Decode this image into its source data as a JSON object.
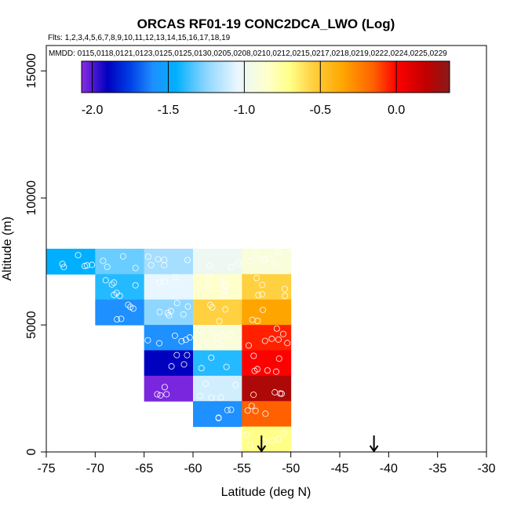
{
  "chart_data": {
    "type": "heatmap",
    "title": "ORCAS RF01-19 CONC2DCA_LWO (Log)",
    "flights_text": "Flts: 1,2,3,4,5,6,7,8,9,10,11,12,13,14,15,16,17,18,19",
    "mmdd_text": "MMDD: 0115,0118,0121,0123,0125,0125,0130,0205,0208,0210,0212,0215,0217,0218,0219,0222,0224,0225,0229",
    "xlabel": "Latitude (deg N)",
    "ylabel": "Altitude (m)",
    "xlim": [
      -75,
      -30
    ],
    "ylim": [
      0,
      16000
    ],
    "xticks": [
      -75,
      -70,
      -65,
      -60,
      -55,
      -50,
      -45,
      -40,
      -35,
      -30
    ],
    "yticks": [
      0,
      5000,
      10000,
      15000
    ],
    "colorbar": {
      "range": [
        -2.07,
        0.35
      ],
      "ticks": [
        -2.0,
        -1.5,
        -1.0,
        -0.5,
        0.0
      ],
      "tick_labels": [
        "-2.0",
        "-1.5",
        "-1.0",
        "-0.5",
        "0.0"
      ],
      "stops": [
        {
          "v": -2.07,
          "c": "#8a2be2"
        },
        {
          "v": -1.9,
          "c": "#0000bf"
        },
        {
          "v": -1.75,
          "c": "#0040e6"
        },
        {
          "v": -1.6,
          "c": "#1e90ff"
        },
        {
          "v": -1.45,
          "c": "#00b0ff"
        },
        {
          "v": -1.25,
          "c": "#8ed6ff"
        },
        {
          "v": -1.05,
          "c": "#e8f6ff"
        },
        {
          "v": -0.85,
          "c": "#ffffcc"
        },
        {
          "v": -0.7,
          "c": "#ffff88"
        },
        {
          "v": -0.55,
          "c": "#ffd040"
        },
        {
          "v": -0.35,
          "c": "#ffa500"
        },
        {
          "v": -0.15,
          "c": "#ff6000"
        },
        {
          "v": 0.0,
          "c": "#ff0000"
        },
        {
          "v": 0.2,
          "c": "#c00000"
        },
        {
          "v": 0.35,
          "c": "#8b1a1a"
        }
      ]
    },
    "bin_size": {
      "lat": 5,
      "alt": 1000
    },
    "cells": [
      {
        "lat": -75,
        "alt": 7000,
        "v": -1.45
      },
      {
        "lat": -70,
        "alt": 7000,
        "v": -1.3
      },
      {
        "lat": -70,
        "alt": 6000,
        "v": -1.4
      },
      {
        "lat": -70,
        "alt": 5000,
        "v": -1.6
      },
      {
        "lat": -65,
        "alt": 7000,
        "v": -1.2
      },
      {
        "lat": -65,
        "alt": 6000,
        "v": -1.05
      },
      {
        "lat": -65,
        "alt": 5000,
        "v": -1.25
      },
      {
        "lat": -65,
        "alt": 4000,
        "v": -1.6
      },
      {
        "lat": -65,
        "alt": 3000,
        "v": -1.9
      },
      {
        "lat": -65,
        "alt": 2000,
        "v": -2.05
      },
      {
        "lat": -60,
        "alt": 7000,
        "v": -1.0
      },
      {
        "lat": -60,
        "alt": 6000,
        "v": -0.85
      },
      {
        "lat": -60,
        "alt": 5000,
        "v": -0.55
      },
      {
        "lat": -60,
        "alt": 4000,
        "v": -0.9
      },
      {
        "lat": -60,
        "alt": 3000,
        "v": -1.4
      },
      {
        "lat": -60,
        "alt": 2000,
        "v": -1.1
      },
      {
        "lat": -60,
        "alt": 1000,
        "v": -1.6
      },
      {
        "lat": -55,
        "alt": 7000,
        "v": -0.9
      },
      {
        "lat": -55,
        "alt": 6000,
        "v": -0.55
      },
      {
        "lat": -55,
        "alt": 5000,
        "v": -0.35
      },
      {
        "lat": -55,
        "alt": 4000,
        "v": -0.05
      },
      {
        "lat": -55,
        "alt": 3000,
        "v": 0.0
      },
      {
        "lat": -55,
        "alt": 2000,
        "v": 0.25
      },
      {
        "lat": -55,
        "alt": 1000,
        "v": -0.15
      },
      {
        "lat": -55,
        "alt": 0,
        "v": -0.7
      }
    ],
    "markers": [
      {
        "lat": -53,
        "label": "down-arrow"
      },
      {
        "lat": -41.5,
        "label": "down-arrow"
      }
    ]
  }
}
